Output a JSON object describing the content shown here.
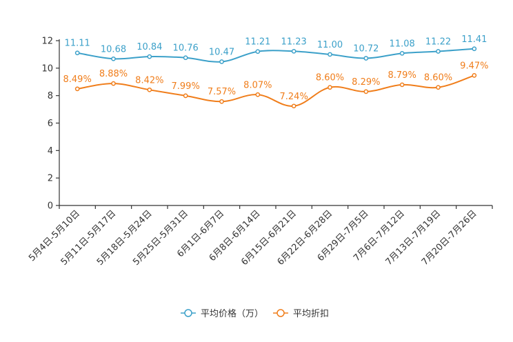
{
  "chart_data": {
    "type": "line",
    "title": "",
    "xlabel": "",
    "ylabel": "",
    "ylim": [
      0,
      12
    ],
    "yticks": [
      0,
      2,
      4,
      6,
      8,
      10,
      12
    ],
    "grid": false,
    "legend_position": "bottom-center",
    "categories": [
      "5月4日-5月10日",
      "5月11日-5月17日",
      "5月18日-5月24日",
      "5月25日-5月31日",
      "6月1日-6月7日",
      "6月8日-6月14日",
      "6月15日-6月21日",
      "6月22日-6月28日",
      "6月29日-7月5日",
      "7月6日-7月12日",
      "7月13日-7月19日",
      "7月20日-7月26日"
    ],
    "series": [
      {
        "name": "平均价格（万）",
        "color": "#3ba0c9",
        "values": [
          11.11,
          10.68,
          10.84,
          10.76,
          10.47,
          11.21,
          11.23,
          11.0,
          10.72,
          11.08,
          11.22,
          11.41
        ],
        "labels": [
          "11.11",
          "10.68",
          "10.84",
          "10.76",
          "10.47",
          "11.21",
          "11.23",
          "11.00",
          "10.72",
          "11.08",
          "11.22",
          "11.41"
        ]
      },
      {
        "name": "平均折扣",
        "color": "#f07d1a",
        "values": [
          8.49,
          8.88,
          8.42,
          7.99,
          7.57,
          8.07,
          7.24,
          8.6,
          8.29,
          8.79,
          8.6,
          9.47
        ],
        "labels": [
          "8.49%",
          "8.88%",
          "8.42%",
          "7.99%",
          "7.57%",
          "8.07%",
          "7.24%",
          "8.60%",
          "8.29%",
          "8.79%",
          "8.60%",
          "9.47%"
        ]
      }
    ]
  }
}
